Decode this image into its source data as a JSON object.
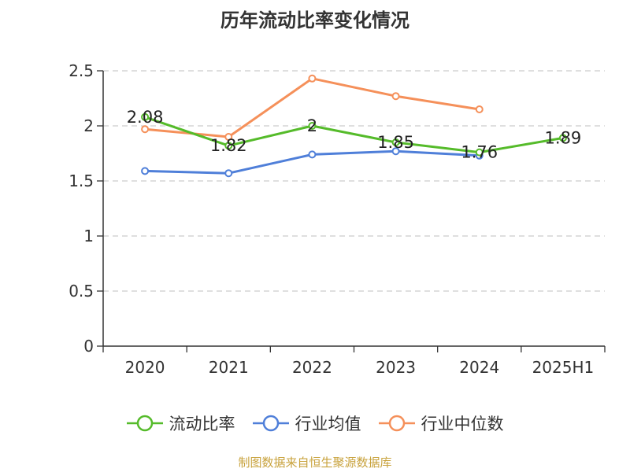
{
  "colors": {
    "current_ratio": "#55bb2a",
    "industry_mean": "#4f7fd9",
    "industry_median": "#f5905a",
    "grid": "#cccccc",
    "axis": "#333333",
    "source": "#c8a23c"
  },
  "source_note": "制图数据来自恒生聚源数据库",
  "chart_data": {
    "type": "line",
    "title": "历年流动比率变化情况",
    "xlabel": "",
    "ylabel": "",
    "categories": [
      "2020",
      "2021",
      "2022",
      "2023",
      "2024",
      "2025H1"
    ],
    "ylim": [
      0,
      2.5
    ],
    "yticks": [
      0,
      0.5,
      1,
      1.5,
      2,
      2.5
    ],
    "ytick_labels": [
      "0",
      "0.5",
      "1",
      "1.5",
      "2",
      "2.5"
    ],
    "grid": true,
    "legend_position": "bottom",
    "series": [
      {
        "name": "流动比率",
        "values": [
          2.08,
          1.82,
          2.0,
          1.85,
          1.76,
          1.89
        ],
        "labels": [
          "2.08",
          "1.82",
          "2",
          "1.85",
          "1.76",
          "1.89"
        ],
        "color": "#55bb2a"
      },
      {
        "name": "行业均值",
        "values": [
          1.59,
          1.57,
          1.74,
          1.77,
          1.73,
          null
        ],
        "color": "#4f7fd9"
      },
      {
        "name": "行业中位数",
        "values": [
          1.97,
          1.9,
          2.43,
          2.27,
          2.15,
          null
        ],
        "color": "#f5905a"
      }
    ]
  }
}
